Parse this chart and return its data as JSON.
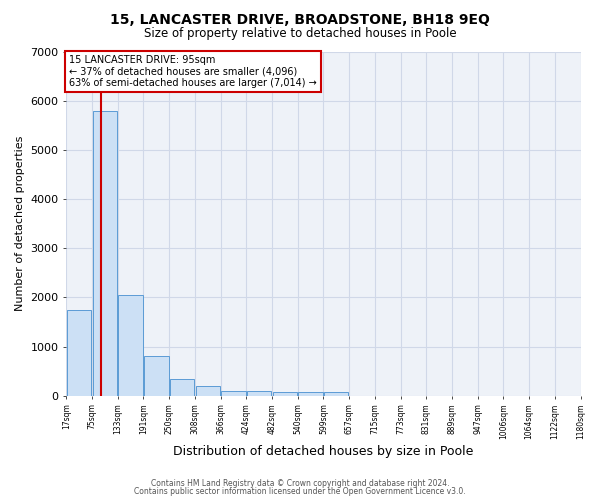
{
  "title": "15, LANCASTER DRIVE, BROADSTONE, BH18 9EQ",
  "subtitle": "Size of property relative to detached houses in Poole",
  "xlabel": "Distribution of detached houses by size in Poole",
  "ylabel": "Number of detached properties",
  "footer_line1": "Contains HM Land Registry data © Crown copyright and database right 2024.",
  "footer_line2": "Contains public sector information licensed under the Open Government Licence v3.0.",
  "annotation_line1": "15 LANCASTER DRIVE: 95sqm",
  "annotation_line2": "← 37% of detached houses are smaller (4,096)",
  "annotation_line3": "63% of semi-detached houses are larger (7,014) →",
  "bin_labels": [
    "17sqm",
    "75sqm",
    "133sqm",
    "191sqm",
    "250sqm",
    "308sqm",
    "366sqm",
    "424sqm",
    "482sqm",
    "540sqm",
    "599sqm",
    "657sqm",
    "715sqm",
    "773sqm",
    "831sqm",
    "889sqm",
    "947sqm",
    "1006sqm",
    "1064sqm",
    "1122sqm",
    "1180sqm"
  ],
  "bar_heights": [
    1750,
    5800,
    2050,
    800,
    340,
    200,
    100,
    100,
    75,
    75,
    75,
    0,
    0,
    0,
    0,
    0,
    0,
    0,
    0,
    0
  ],
  "property_sqm": 95,
  "bin_width": 58,
  "bar_color": "#cce0f5",
  "bar_edge_color": "#5b9bd5",
  "red_line_color": "#cc0000",
  "annotation_box_color": "#cc0000",
  "grid_color": "#d0d8e8",
  "bg_color": "#eef2f8",
  "ylim": [
    0,
    7000
  ],
  "yticks": [
    0,
    1000,
    2000,
    3000,
    4000,
    5000,
    6000,
    7000
  ]
}
